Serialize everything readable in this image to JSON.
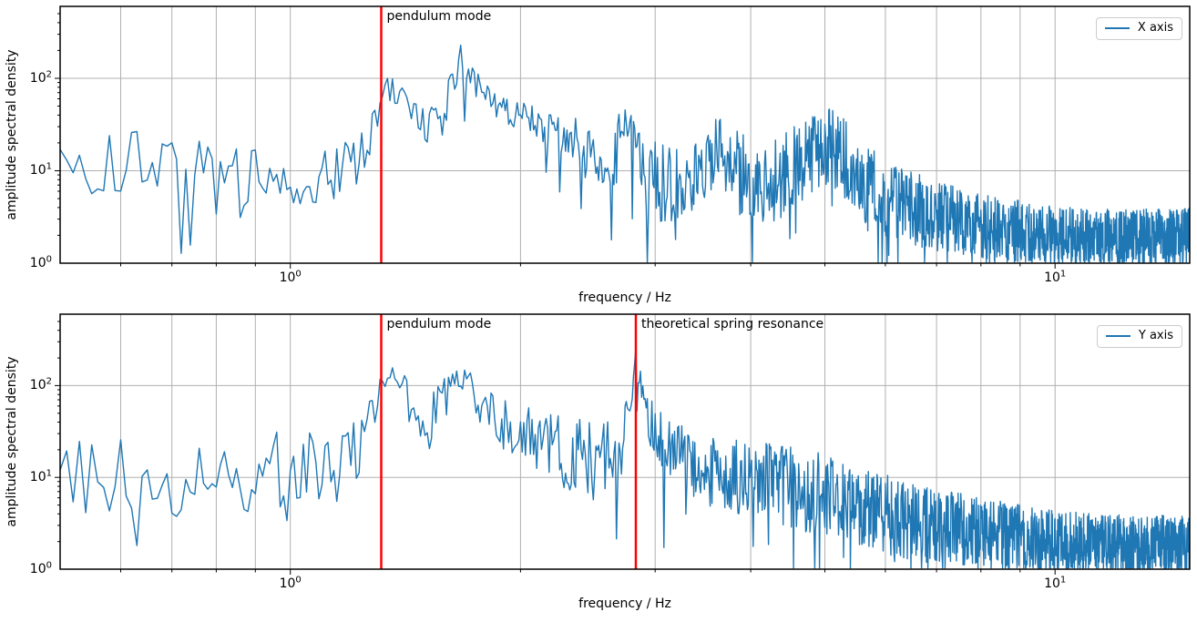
{
  "figure": {
    "background": "#ffffff"
  },
  "chart_data": [
    {
      "type": "line",
      "subplot": "top",
      "xscale": "log",
      "yscale": "log",
      "xlim": [
        0.5,
        15
      ],
      "ylim": [
        1,
        600
      ],
      "xlabel": "frequency / Hz",
      "ylabel": "amplitude spectral density",
      "grid": true,
      "grid_color": "#b0b0b0",
      "spine_color": "#000000",
      "legend": {
        "position": "upper right",
        "entries": [
          "X axis"
        ]
      },
      "line_color": "#1f77b4",
      "x_ticks": [
        {
          "f": 1,
          "base": "10",
          "exp": "0"
        },
        {
          "f": 10,
          "base": "10",
          "exp": "1"
        }
      ],
      "y_ticks": [
        {
          "v": 1,
          "base": "10",
          "exp": "0"
        },
        {
          "v": 10,
          "base": "10",
          "exp": "1"
        },
        {
          "v": 100,
          "base": "10",
          "exp": "2"
        }
      ],
      "vlines": [
        {
          "x": 1.315,
          "label": "pendulum mode",
          "color": "#ff0000"
        }
      ],
      "freq_step": 0.01,
      "noise_seed": 20,
      "noise": {
        "dip_prob": 0.035,
        "dip_min": 0.08,
        "dip_span": 0.3
      },
      "envelope_format": [
        "frequency_hz",
        "median_amplitude",
        "spread_dex"
      ],
      "envelope": [
        [
          0.5,
          12,
          0.3
        ],
        [
          0.55,
          9,
          0.4
        ],
        [
          0.62,
          13,
          0.35
        ],
        [
          0.7,
          11,
          0.35
        ],
        [
          0.78,
          10,
          0.4
        ],
        [
          0.84,
          6,
          0.55
        ],
        [
          0.92,
          11,
          0.35
        ],
        [
          1.0,
          9,
          0.35
        ],
        [
          1.1,
          9,
          0.32
        ],
        [
          1.2,
          11,
          0.3
        ],
        [
          1.27,
          20,
          0.25
        ],
        [
          1.32,
          65,
          0.18
        ],
        [
          1.37,
          75,
          0.15
        ],
        [
          1.43,
          45,
          0.2
        ],
        [
          1.5,
          28,
          0.25
        ],
        [
          1.57,
          35,
          0.25
        ],
        [
          1.63,
          80,
          0.2
        ],
        [
          1.67,
          170,
          0.18
        ],
        [
          1.72,
          110,
          0.15
        ],
        [
          1.78,
          70,
          0.15
        ],
        [
          1.85,
          55,
          0.15
        ],
        [
          1.95,
          42,
          0.15
        ],
        [
          2.05,
          38,
          0.18
        ],
        [
          2.15,
          30,
          0.22
        ],
        [
          2.3,
          26,
          0.25
        ],
        [
          2.45,
          14,
          0.3
        ],
        [
          2.6,
          11,
          0.35
        ],
        [
          2.72,
          22,
          0.35
        ],
        [
          2.78,
          30,
          0.3
        ],
        [
          2.9,
          9,
          0.4
        ],
        [
          3.05,
          7,
          0.45
        ],
        [
          3.25,
          8,
          0.45
        ],
        [
          3.45,
          12,
          0.4
        ],
        [
          3.6,
          16,
          0.4
        ],
        [
          3.8,
          10,
          0.45
        ],
        [
          4.0,
          8,
          0.45
        ],
        [
          4.3,
          8,
          0.48
        ],
        [
          4.6,
          11,
          0.45
        ],
        [
          4.9,
          17,
          0.45
        ],
        [
          5.1,
          18,
          0.45
        ],
        [
          5.4,
          12,
          0.45
        ],
        [
          5.7,
          7,
          0.45
        ],
        [
          6.0,
          5,
          0.42
        ],
        [
          6.5,
          4,
          0.4
        ],
        [
          7.0,
          3.2,
          0.38
        ],
        [
          8.0,
          2.6,
          0.36
        ],
        [
          9.0,
          2.2,
          0.34
        ],
        [
          10.0,
          2.0,
          0.32
        ],
        [
          12.0,
          1.9,
          0.3
        ],
        [
          15.0,
          2.0,
          0.3
        ]
      ]
    },
    {
      "type": "line",
      "subplot": "bottom",
      "xscale": "log",
      "yscale": "log",
      "xlim": [
        0.5,
        15
      ],
      "ylim": [
        1,
        600
      ],
      "xlabel": "frequency / Hz",
      "ylabel": "amplitude spectral density",
      "grid": true,
      "grid_color": "#b0b0b0",
      "spine_color": "#000000",
      "legend": {
        "position": "upper right",
        "entries": [
          "Y axis"
        ]
      },
      "line_color": "#1f77b4",
      "x_ticks": [
        {
          "f": 1,
          "base": "10",
          "exp": "0"
        },
        {
          "f": 10,
          "base": "10",
          "exp": "1"
        }
      ],
      "y_ticks": [
        {
          "v": 1,
          "base": "10",
          "exp": "0"
        },
        {
          "v": 10,
          "base": "10",
          "exp": "1"
        },
        {
          "v": 100,
          "base": "10",
          "exp": "2"
        }
      ],
      "vlines": [
        {
          "x": 1.315,
          "label": "pendulum mode",
          "color": "#ff0000"
        },
        {
          "x": 2.83,
          "label": "theoretical spring resonance",
          "color": "#ff0000"
        }
      ],
      "freq_step": 0.01,
      "noise_seed": 77,
      "noise": {
        "dip_prob": 0.035,
        "dip_min": 0.08,
        "dip_span": 0.3
      },
      "envelope_format": [
        "frequency_hz",
        "median_amplitude",
        "spread_dex"
      ],
      "envelope": [
        [
          0.5,
          14,
          0.45
        ],
        [
          0.56,
          9,
          0.45
        ],
        [
          0.63,
          10,
          0.45
        ],
        [
          0.7,
          9,
          0.45
        ],
        [
          0.78,
          11,
          0.42
        ],
        [
          0.86,
          10,
          0.42
        ],
        [
          0.95,
          12,
          0.42
        ],
        [
          1.05,
          13,
          0.4
        ],
        [
          1.15,
          16,
          0.38
        ],
        [
          1.24,
          22,
          0.32
        ],
        [
          1.3,
          60,
          0.25
        ],
        [
          1.34,
          160,
          0.18
        ],
        [
          1.4,
          90,
          0.22
        ],
        [
          1.47,
          40,
          0.28
        ],
        [
          1.55,
          50,
          0.28
        ],
        [
          1.62,
          80,
          0.25
        ],
        [
          1.67,
          150,
          0.2
        ],
        [
          1.73,
          80,
          0.25
        ],
        [
          1.82,
          45,
          0.3
        ],
        [
          1.92,
          35,
          0.32
        ],
        [
          2.05,
          28,
          0.35
        ],
        [
          2.2,
          20,
          0.38
        ],
        [
          2.35,
          16,
          0.45
        ],
        [
          2.5,
          14,
          0.45
        ],
        [
          2.65,
          16,
          0.42
        ],
        [
          2.76,
          35,
          0.32
        ],
        [
          2.83,
          190,
          0.22
        ],
        [
          2.9,
          55,
          0.25
        ],
        [
          3.0,
          32,
          0.28
        ],
        [
          3.15,
          20,
          0.32
        ],
        [
          3.35,
          14,
          0.36
        ],
        [
          3.6,
          11,
          0.4
        ],
        [
          3.9,
          10,
          0.42
        ],
        [
          4.2,
          9,
          0.44
        ],
        [
          4.6,
          7.5,
          0.44
        ],
        [
          5.0,
          6.5,
          0.45
        ],
        [
          5.5,
          5,
          0.45
        ],
        [
          6.0,
          4,
          0.44
        ],
        [
          6.6,
          3.2,
          0.42
        ],
        [
          7.3,
          2.8,
          0.4
        ],
        [
          8.2,
          2.4,
          0.38
        ],
        [
          9.0,
          2.2,
          0.36
        ],
        [
          10.0,
          2.0,
          0.35
        ],
        [
          12.0,
          1.9,
          0.33
        ],
        [
          15.0,
          1.8,
          0.32
        ]
      ]
    }
  ]
}
